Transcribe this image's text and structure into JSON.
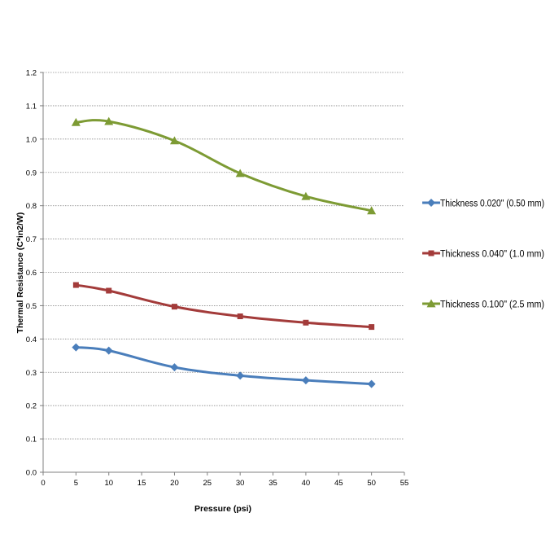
{
  "chart_data": {
    "type": "line",
    "title": "",
    "xlabel": "Pressure (psi)",
    "ylabel": "Thermal Resistance (C*in2/W)",
    "xlim": [
      0,
      55
    ],
    "ylim": [
      0,
      1.2
    ],
    "x_ticks": [
      "0",
      "5",
      "10",
      "15",
      "20",
      "25",
      "30",
      "35",
      "40",
      "45",
      "50",
      "55"
    ],
    "y_ticks": [
      "0.0",
      "0.1",
      "0.2",
      "0.3",
      "0.4",
      "0.5",
      "0.6",
      "0.7",
      "0.8",
      "0.9",
      "1.0",
      "1.1",
      "1.2"
    ],
    "grid": "horizontal",
    "legend_position": "right",
    "series": [
      {
        "name": "Thickness 0.020\" (0.50 mm)",
        "color": "#4a7ebb",
        "marker": "diamond",
        "x": [
          5,
          10,
          20,
          30,
          40,
          50
        ],
        "values": [
          0.375,
          0.365,
          0.315,
          0.29,
          0.276,
          0.265
        ]
      },
      {
        "name": "Thickness 0.040\" (1.0 mm)",
        "color": "#a33b3a",
        "marker": "square",
        "x": [
          5,
          10,
          20,
          30,
          40,
          50
        ],
        "values": [
          0.562,
          0.545,
          0.497,
          0.468,
          0.449,
          0.436
        ]
      },
      {
        "name": "Thickness 0.100\" (2.5 mm)",
        "color": "#7d9b34",
        "marker": "triangle",
        "x": [
          5,
          10,
          20,
          30,
          40,
          50
        ],
        "values": [
          1.05,
          1.053,
          0.995,
          0.897,
          0.828,
          0.785
        ]
      }
    ]
  }
}
